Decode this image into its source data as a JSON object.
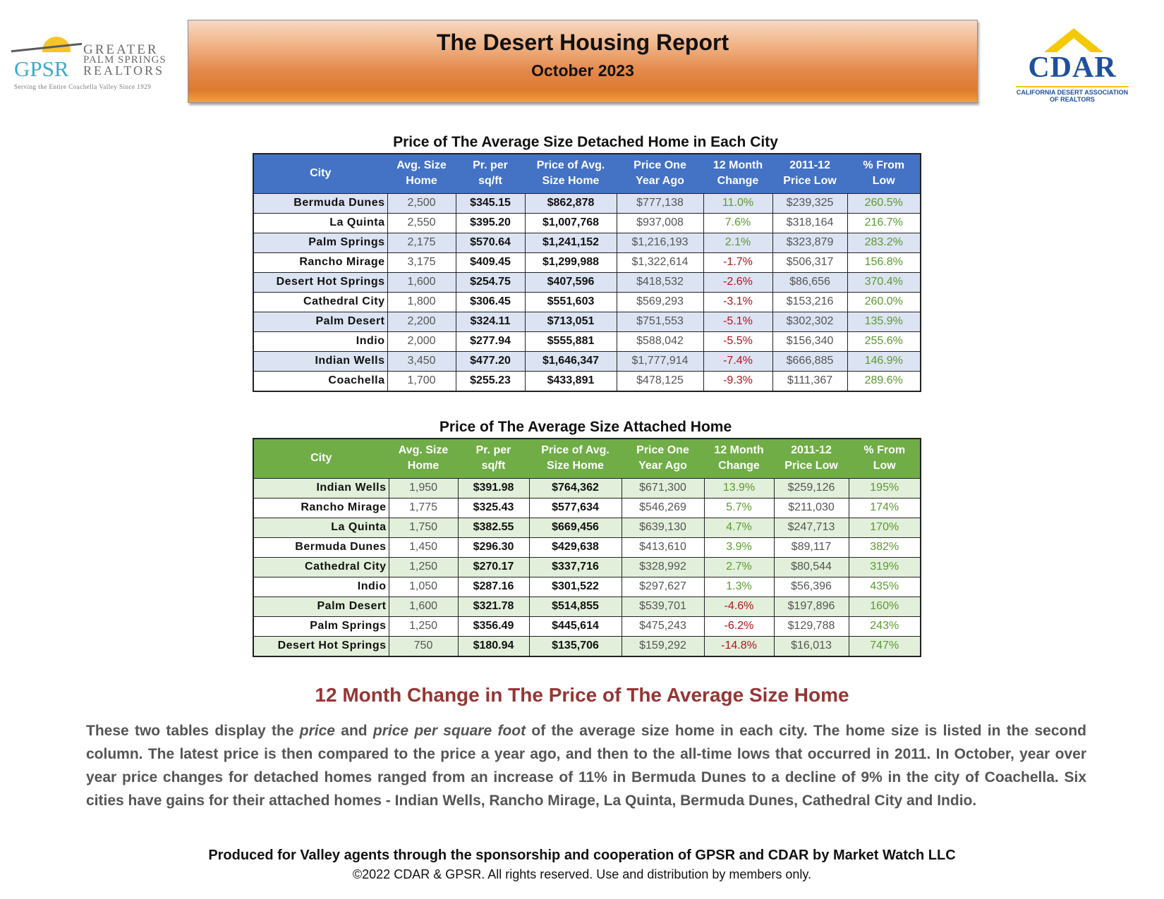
{
  "header": {
    "gpsr_logo": {
      "mark": "GPSR",
      "line1": "GREATER",
      "line2": "PALM SPRINGS",
      "line3": "REALTORS",
      "tagline": "Serving the Entire Coachella Valley Since 1929"
    },
    "title": "The Desert Housing Report",
    "subtitle": "October 2023",
    "cdar_logo": {
      "mark": "CDAR",
      "line1": "CALIFORNIA DESERT ASSOCIATION",
      "line2": "OF REALTORS"
    }
  },
  "detached": {
    "title": "Price of The Average Size Detached Home in Each City",
    "headers": [
      [
        "City",
        ""
      ],
      [
        "Avg. Size",
        "Home"
      ],
      [
        "Pr. per",
        "sq/ft"
      ],
      [
        "Price of Avg.",
        "Size Home"
      ],
      [
        "Price One",
        "Year Ago"
      ],
      [
        "12 Month",
        "Change"
      ],
      [
        "2011-12",
        "Price Low"
      ],
      [
        "% From",
        "Low"
      ]
    ],
    "rows": [
      [
        "Bermuda Dunes",
        "2,500",
        "$345.15",
        "$862,878",
        "$777,138",
        "11.0%",
        "$239,325",
        "260.5%"
      ],
      [
        "La Quinta",
        "2,550",
        "$395.20",
        "$1,007,768",
        "$937,008",
        "7.6%",
        "$318,164",
        "216.7%"
      ],
      [
        "Palm Springs",
        "2,175",
        "$570.64",
        "$1,241,152",
        "$1,216,193",
        "2.1%",
        "$323,879",
        "283.2%"
      ],
      [
        "Rancho Mirage",
        "3,175",
        "$409.45",
        "$1,299,988",
        "$1,322,614",
        "-1.7%",
        "$506,317",
        "156.8%"
      ],
      [
        "Desert Hot Springs",
        "1,600",
        "$254.75",
        "$407,596",
        "$418,532",
        "-2.6%",
        "$86,656",
        "370.4%"
      ],
      [
        "Cathedral City",
        "1,800",
        "$306.45",
        "$551,603",
        "$569,293",
        "-3.1%",
        "$153,216",
        "260.0%"
      ],
      [
        "Palm Desert",
        "2,200",
        "$324.11",
        "$713,051",
        "$751,553",
        "-5.1%",
        "$302,302",
        "135.9%"
      ],
      [
        "Indio",
        "2,000",
        "$277.94",
        "$555,881",
        "$588,042",
        "-5.5%",
        "$156,340",
        "255.6%"
      ],
      [
        "Indian Wells",
        "3,450",
        "$477.20",
        "$1,646,347",
        "$1,777,914",
        "-7.4%",
        "$666,885",
        "146.9%"
      ],
      [
        "Coachella",
        "1,700",
        "$255.23",
        "$433,891",
        "$478,125",
        "-9.3%",
        "$111,367",
        "289.6%"
      ]
    ]
  },
  "attached": {
    "title": "Price of The Average Size Attached Home",
    "headers": [
      [
        "City",
        ""
      ],
      [
        "Avg. Size",
        "Home"
      ],
      [
        "Pr. per",
        "sq/ft"
      ],
      [
        "Price of Avg.",
        "Size Home"
      ],
      [
        "Price One",
        "Year Ago"
      ],
      [
        "12 Month",
        "Change"
      ],
      [
        "2011-12",
        "Price Low"
      ],
      [
        "% From",
        "Low"
      ]
    ],
    "rows": [
      [
        "Indian Wells",
        "1,950",
        "$391.98",
        "$764,362",
        "$671,300",
        "13.9%",
        "$259,126",
        "195%"
      ],
      [
        "Rancho Mirage",
        "1,775",
        "$325.43",
        "$577,634",
        "$546,269",
        "5.7%",
        "$211,030",
        "174%"
      ],
      [
        "La Quinta",
        "1,750",
        "$382.55",
        "$669,456",
        "$639,130",
        "4.7%",
        "$247,713",
        "170%"
      ],
      [
        "Bermuda Dunes",
        "1,450",
        "$296.30",
        "$429,638",
        "$413,610",
        "3.9%",
        "$89,117",
        "382%"
      ],
      [
        "Cathedral City",
        "1,250",
        "$270.17",
        "$337,716",
        "$328,992",
        "2.7%",
        "$80,544",
        "319%"
      ],
      [
        "Indio",
        "1,050",
        "$287.16",
        "$301,522",
        "$297,627",
        "1.3%",
        "$56,396",
        "435%"
      ],
      [
        "Palm Desert",
        "1,600",
        "$321.78",
        "$514,855",
        "$539,701",
        "-4.6%",
        "$197,896",
        "160%"
      ],
      [
        "Palm Springs",
        "1,250",
        "$356.49",
        "$445,614",
        "$475,243",
        "-6.2%",
        "$129,788",
        "243%"
      ],
      [
        "Desert Hot Springs",
        "750",
        "$180.94",
        "$135,706",
        "$159,292",
        "-14.8%",
        "$16,013",
        "747%"
      ]
    ]
  },
  "section": {
    "title": "12 Month Change in The Price of The Average Size Home",
    "para_parts": [
      "These two tables display the ",
      "price",
      " and ",
      "price per square foot",
      " of the average size home in each city. The home size is listed in the second column. The latest price is then compared to the price a year ago, and then to the all-time lows that occurred in 2011. In October, year over year price changes for detached homes ranged from an increase of 11% in Bermuda Dunes to a decline of 9% in the city of Coachella. Six cities have gains for their attached homes - Indian Wells, Rancho Mirage, La Quinta, Bermuda Dunes, Cathedral City and Indio."
    ]
  },
  "footer": {
    "line1": "Produced for Valley agents through the sponsorship and cooperation of GPSR and CDAR by Market Watch LLC",
    "line2": "©2022 CDAR & GPSR.  All rights reserved.  Use and distribution by members only."
  },
  "colors": {
    "detached_header": "#4472c4",
    "detached_alt_row": "#dce3f2",
    "attached_header": "#70ad47",
    "attached_alt_row": "#e2efda",
    "positive": "#5b9a2f",
    "negative": "#b3121b",
    "section_title": "#943634"
  }
}
